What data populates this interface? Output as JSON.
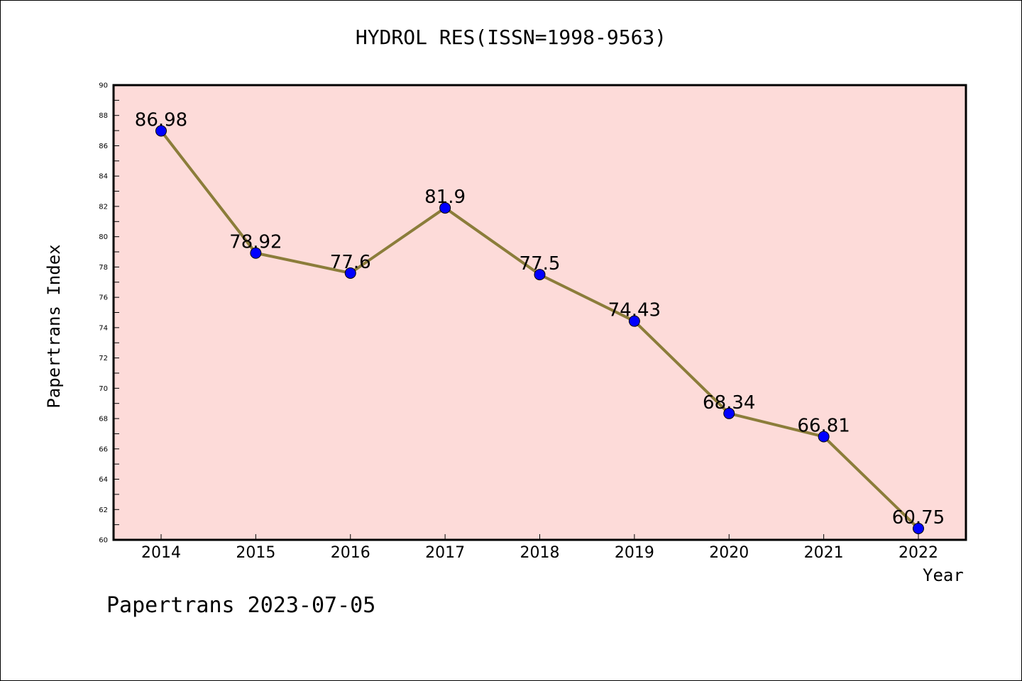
{
  "chart_data": {
    "type": "line",
    "title": "HYDROL RES(ISSN=1998-9563)",
    "xlabel": "Year",
    "ylabel": "Papertrans Index",
    "categories": [
      "2014",
      "2015",
      "2016",
      "2017",
      "2018",
      "2019",
      "2020",
      "2021",
      "2022"
    ],
    "series": [
      {
        "values": [
          86.98,
          78.92,
          77.6,
          81.9,
          77.5,
          74.43,
          68.34,
          66.81,
          60.75
        ],
        "data_labels": [
          "86.98",
          "78.92",
          "77.6",
          "81.9",
          "77.5",
          "74.43",
          "68.34",
          "66.81",
          "60.75"
        ]
      }
    ],
    "ylim": [
      60,
      90
    ],
    "yticks": [
      "60",
      "62",
      "64",
      "66",
      "68",
      "70",
      "72",
      "74",
      "76",
      "78",
      "80",
      "82",
      "84",
      "86",
      "88",
      "90"
    ],
    "grid": false,
    "colors": {
      "plot_background": "#fddbd9",
      "line": "#8b7d3a",
      "marker": "#0000ff"
    }
  },
  "footer": "Papertrans 2023-07-05"
}
